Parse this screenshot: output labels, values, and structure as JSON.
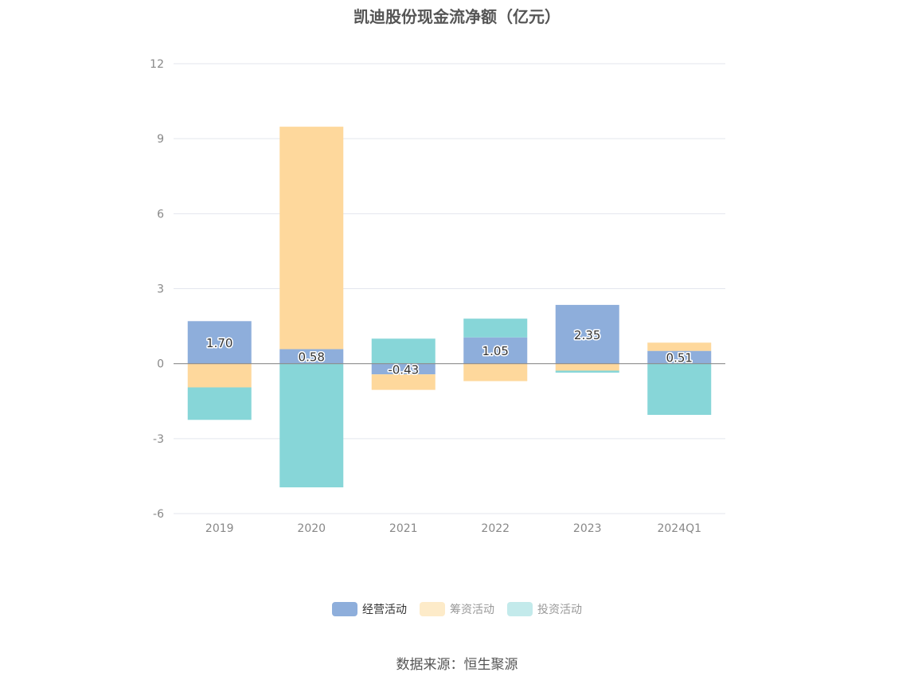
{
  "chart_data": {
    "type": "bar",
    "stacked": true,
    "title": "凯迪股份现金流净额（亿元）",
    "categories": [
      "2019",
      "2020",
      "2021",
      "2022",
      "2023",
      "2024Q1"
    ],
    "series": [
      {
        "name": "经营活动",
        "color": "#8eaedb",
        "values": [
          1.7,
          0.58,
          -0.43,
          1.05,
          2.35,
          0.51
        ]
      },
      {
        "name": "筹资活动",
        "color": "#fed89c",
        "values": [
          -0.95,
          8.9,
          -0.62,
          -0.7,
          -0.28,
          0.33
        ]
      },
      {
        "name": "投资活动",
        "color": "#87d6d8",
        "values": [
          -1.3,
          -4.95,
          1.0,
          0.75,
          -0.08,
          -2.05
        ]
      }
    ],
    "data_labels": [
      "1.70",
      "0.58",
      "-0.43",
      "1.05",
      "2.35",
      "0.51"
    ],
    "ylim": [
      -6,
      12
    ],
    "yticks": [
      "12",
      "9",
      "6",
      "3",
      "0",
      "-3",
      "-6"
    ],
    "grid": true,
    "legend_position": "bottom"
  },
  "legend": {
    "items": [
      {
        "label": "经营活动",
        "color": "#8eaedb",
        "swatch": "#8eaedb"
      },
      {
        "label": "筹资活动",
        "color": "#fed89c",
        "swatch": "#fdebc9"
      },
      {
        "label": "投资活动",
        "color": "#87d6d8",
        "swatch": "#c3eaeb"
      }
    ]
  },
  "footer": {
    "source": "数据来源：恒生聚源"
  }
}
